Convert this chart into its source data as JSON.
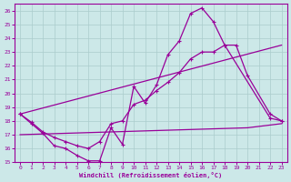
{
  "xlabel": "Windchill (Refroidissement éolien,°C)",
  "xlim": [
    -0.5,
    23.5
  ],
  "ylim": [
    15,
    26.5
  ],
  "yticks": [
    15,
    16,
    17,
    18,
    19,
    20,
    21,
    22,
    23,
    24,
    25,
    26
  ],
  "xticks": [
    0,
    1,
    2,
    3,
    4,
    5,
    6,
    7,
    8,
    9,
    10,
    11,
    12,
    13,
    14,
    15,
    16,
    17,
    18,
    19,
    20,
    21,
    22,
    23
  ],
  "background_color": "#cce8e8",
  "grid_color": "#aacccc",
  "line_color": "#990099",
  "curve1_x": [
    0,
    1,
    2,
    3,
    4,
    5,
    6,
    7,
    8,
    9,
    10,
    11,
    12,
    13,
    14,
    15,
    16,
    17,
    18,
    22,
    23
  ],
  "curve1_y": [
    18.5,
    17.8,
    17.1,
    16.2,
    16.0,
    15.5,
    15.1,
    15.1,
    17.5,
    16.3,
    20.5,
    19.3,
    20.6,
    22.8,
    23.8,
    25.8,
    26.2,
    25.2,
    23.5,
    18.2,
    18.0
  ],
  "curve2_x": [
    0,
    1,
    2,
    3,
    4,
    5,
    6,
    7,
    8,
    9,
    10,
    11,
    12,
    13,
    14,
    15,
    16,
    17,
    18,
    19,
    20,
    22,
    23
  ],
  "curve2_y": [
    18.5,
    17.9,
    17.2,
    16.8,
    16.5,
    16.2,
    16.0,
    16.5,
    17.8,
    18.0,
    19.2,
    19.5,
    20.2,
    20.8,
    21.5,
    22.5,
    23.0,
    23.0,
    23.5,
    23.5,
    21.3,
    18.5,
    18.0
  ],
  "line3_x": [
    0,
    23
  ],
  "line3_y": [
    18.5,
    23.5
  ],
  "line4_x": [
    0,
    20,
    23
  ],
  "line4_y": [
    17.0,
    17.5,
    17.8
  ]
}
